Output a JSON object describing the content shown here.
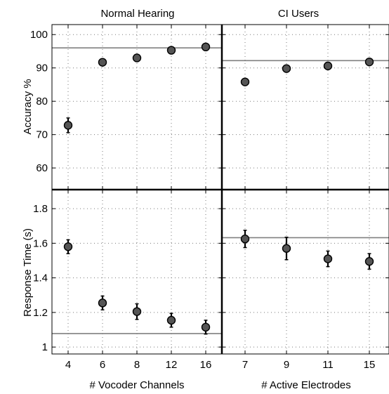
{
  "figure": {
    "column_titles": [
      "Normal Hearing",
      "CI Users"
    ],
    "row_labels": [
      "Accuracy %",
      "Response Time (s)"
    ],
    "x_labels": [
      "# Vocoder Channels",
      "# Active Electrodes"
    ]
  },
  "colors": {
    "marker_fill": "#555555",
    "marker_stroke": "#000000",
    "reference_line": "#808080",
    "grid": "#7a7a7a"
  },
  "chart_data": [
    {
      "type": "scatter",
      "title": "Normal Hearing",
      "xlabel": "",
      "ylabel": "Accuracy %",
      "x_ticks": [
        "4",
        "6",
        "8",
        "12",
        "16"
      ],
      "y_ticks": [
        60,
        70,
        80,
        90,
        100
      ],
      "ylim": [
        53.5,
        103
      ],
      "x": [
        "4",
        "6",
        "8",
        "12",
        "16"
      ],
      "y": [
        72.8,
        91.7,
        93.0,
        95.3,
        96.3
      ],
      "error": [
        2.2,
        0.8,
        0.8,
        0.7,
        0.5
      ],
      "reference_line": 96.0,
      "grid": true
    },
    {
      "type": "scatter",
      "title": "CI Users",
      "xlabel": "",
      "ylabel": "",
      "x_ticks": [
        "7",
        "9",
        "11",
        "15"
      ],
      "y_ticks": [
        60,
        70,
        80,
        90,
        100
      ],
      "ylim": [
        53.5,
        103
      ],
      "x": [
        "7",
        "9",
        "11",
        "15"
      ],
      "y": [
        85.8,
        89.8,
        90.6,
        91.8
      ],
      "error": [
        0.5,
        1.0,
        0.8,
        0.6
      ],
      "reference_line": 92.2,
      "grid": true
    },
    {
      "type": "scatter",
      "title": "",
      "xlabel": "# Vocoder Channels",
      "ylabel": "Response Time (s)",
      "x_ticks": [
        "4",
        "6",
        "8",
        "12",
        "16"
      ],
      "y_ticks": [
        "1",
        "1.2",
        "1.4",
        "1.6",
        "1.8"
      ],
      "ylim": [
        0.96,
        1.91
      ],
      "x": [
        "4",
        "6",
        "8",
        "12",
        "16"
      ],
      "y": [
        1.58,
        1.255,
        1.205,
        1.155,
        1.115
      ],
      "error": [
        0.04,
        0.04,
        0.045,
        0.04,
        0.04
      ],
      "reference_line": 1.078,
      "grid": true
    },
    {
      "type": "scatter",
      "title": "",
      "xlabel": "# Active Electrodes",
      "ylabel": "",
      "x_ticks": [
        "7",
        "9",
        "11",
        "15"
      ],
      "y_ticks": [
        "1",
        "1.2",
        "1.4",
        "1.6",
        "1.8"
      ],
      "ylim": [
        0.96,
        1.91
      ],
      "x": [
        "7",
        "9",
        "11",
        "15"
      ],
      "y": [
        1.625,
        1.57,
        1.51,
        1.495
      ],
      "error": [
        0.05,
        0.065,
        0.045,
        0.045
      ],
      "reference_line": 1.632,
      "grid": true
    }
  ]
}
